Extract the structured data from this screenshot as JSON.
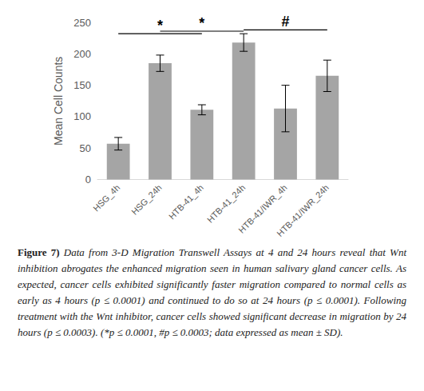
{
  "chart_data": {
    "type": "bar",
    "categories": [
      "HSG_4h",
      "HSG_24h",
      "HTB-41_4h",
      "HTB-41_24h",
      "HTB-41/IWR_4h",
      "HTB-41/IWR_24h"
    ],
    "values": [
      57,
      185,
      111,
      218,
      113,
      165
    ],
    "errors": [
      10,
      13,
      8,
      14,
      37,
      25
    ],
    "color": "#a5a5a5",
    "y_label": "Mean Cell Counts",
    "ylim": [
      0,
      250
    ],
    "yticks": [
      0,
      50,
      100,
      150,
      200,
      250
    ],
    "grid": false,
    "annotations": [
      {
        "from": "HSG_4h",
        "to": "HTB-41_4h",
        "y": 232,
        "label": "*"
      },
      {
        "from": "HSG_24h",
        "to": "HTB-41_24h",
        "y": 236,
        "label": "*"
      },
      {
        "from": "HTB-41_24h",
        "to": "HTB-41/IWR_24h",
        "y": 238,
        "label": "#"
      }
    ],
    "caption": {
      "label": "Figure 7)",
      "text": "Data from 3-D Migration Transwell Assays at 4 and 24 hours reveal that Wnt inhibition abrogates the enhanced migration seen in human salivary gland cancer cells. As expected, cancer cells exhibited significantly faster migration compared to normal cells as early as 4 hours (p ≤ 0.0001) and continued to do so at 24 hours (p ≤ 0.0001). Following treatment with the Wnt inhibitor, cancer cells showed significant decrease in migration by 24 hours (p ≤ 0.0003). (*p ≤ 0.0001, #p ≤ 0.0003; data expressed as mean ± SD)."
    }
  }
}
